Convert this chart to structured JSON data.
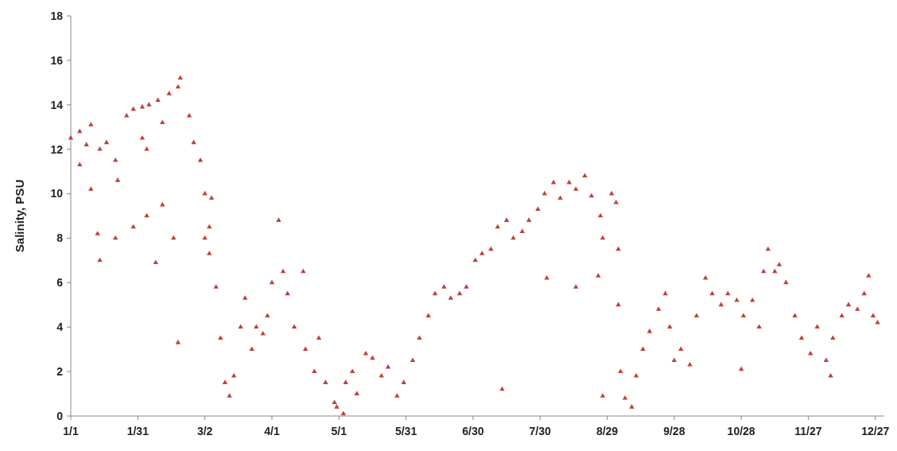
{
  "chart_data": {
    "type": "scatter",
    "ylabel": "Salinity, PSU",
    "marker": "triangle",
    "grid": false,
    "xlim": [
      "--01-01",
      "--12-31"
    ],
    "ylim": [
      0,
      18
    ],
    "xticks": [
      {
        "value": "--01-01",
        "label": "1/1"
      },
      {
        "value": "--01-31",
        "label": "1/31"
      },
      {
        "value": "--03-02",
        "label": "3/2"
      },
      {
        "value": "--04-01",
        "label": "4/1"
      },
      {
        "value": "--05-01",
        "label": "5/1"
      },
      {
        "value": "--05-31",
        "label": "5/31"
      },
      {
        "value": "--06-30",
        "label": "6/30"
      },
      {
        "value": "--07-30",
        "label": "7/30"
      },
      {
        "value": "--08-29",
        "label": "8/29"
      },
      {
        "value": "--09-28",
        "label": "9/28"
      },
      {
        "value": "--10-28",
        "label": "10/28"
      },
      {
        "value": "--11-27",
        "label": "11/27"
      },
      {
        "value": "--12-27",
        "label": "12/27"
      }
    ],
    "yticks": [
      0,
      2,
      4,
      6,
      8,
      10,
      12,
      14,
      16,
      18
    ],
    "series": [
      {
        "color": "#c0403c",
        "x": [
          "--01-01",
          "--01-05",
          "--01-08",
          "--01-10",
          "--01-14",
          "--01-17",
          "--01-21",
          "--01-22",
          "--01-26",
          "--01-29",
          "--02-02",
          "--02-02",
          "--02-04",
          "--02-05",
          "--02-09",
          "--02-11",
          "--02-14",
          "--02-18",
          "--02-19",
          "--02-23",
          "--02-25",
          "--02-28",
          "--03-02",
          "--03-02",
          "--03-04",
          "--03-04",
          "--03-05",
          "--03-07",
          "--03-09",
          "--03-11",
          "--03-13",
          "--03-15",
          "--03-18",
          "--03-20",
          "--03-23",
          "--03-25",
          "--03-28",
          "--03-30",
          "--04-01",
          "--04-04",
          "--04-06",
          "--04-08",
          "--04-11",
          "--04-15",
          "--04-16",
          "--04-20",
          "--04-22",
          "--04-25",
          "--04-29",
          "--04-30",
          "--05-04",
          "--05-07",
          "--05-09",
          "--05-13",
          "--05-16",
          "--05-20",
          "--05-23",
          "--05-27",
          "--05-30",
          "--06-03",
          "--06-06",
          "--06-10",
          "--06-13",
          "--06-17",
          "--06-20",
          "--06-24",
          "--06-27",
          "--07-01",
          "--07-04",
          "--07-08",
          "--07-11",
          "--07-15",
          "--07-18",
          "--07-22",
          "--07-25",
          "--07-29",
          "--08-01",
          "--08-05",
          "--08-08",
          "--08-12",
          "--08-15",
          "--08-19",
          "--08-22",
          "--08-26",
          "--08-27",
          "--08-31",
          "--09-02",
          "--09-03",
          "--09-03",
          "--09-04",
          "--09-06",
          "--09-09",
          "--09-11",
          "--09-14",
          "--09-17",
          "--09-21",
          "--09-24",
          "--09-26",
          "--09-28",
          "--10-01",
          "--10-05",
          "--10-08",
          "--10-12",
          "--10-15",
          "--10-19",
          "--10-22",
          "--10-26",
          "--10-29",
          "--11-02",
          "--11-05",
          "--11-07",
          "--11-09",
          "--11-12",
          "--11-14",
          "--11-17",
          "--11-21",
          "--11-24",
          "--11-28",
          "--12-01",
          "--12-05",
          "--12-07",
          "--12-08",
          "--12-12",
          "--12-15",
          "--12-19",
          "--12-22",
          "--12-24",
          "--12-26",
          "--12-28",
          "--01-05",
          "--01-10",
          "--01-13",
          "--01-14",
          "--01-21",
          "--01-29",
          "--02-04",
          "--02-08",
          "--02-11",
          "--02-16",
          "--02-18",
          "--05-03",
          "--07-13",
          "--08-02",
          "--08-15",
          "--08-25",
          "--08-27",
          "--10-28"
        ],
        "values": [
          12.5,
          12.8,
          12.2,
          13.1,
          12.0,
          12.3,
          11.5,
          10.6,
          13.5,
          13.8,
          12.5,
          13.9,
          12.0,
          14.0,
          14.2,
          13.2,
          14.5,
          14.8,
          15.2,
          13.5,
          12.3,
          11.5,
          10.0,
          8.0,
          8.5,
          7.3,
          9.8,
          5.8,
          3.5,
          1.5,
          0.9,
          1.8,
          4.0,
          5.3,
          3.0,
          4.0,
          3.7,
          4.5,
          6.0,
          8.8,
          6.5,
          5.5,
          4.0,
          6.5,
          3.0,
          2.0,
          3.5,
          1.5,
          0.6,
          0.4,
          1.5,
          2.0,
          1.0,
          2.8,
          2.6,
          1.8,
          2.2,
          0.9,
          1.5,
          2.5,
          3.5,
          4.5,
          5.5,
          5.8,
          5.3,
          5.5,
          5.8,
          7.0,
          7.3,
          7.5,
          8.5,
          8.8,
          8.0,
          8.3,
          8.8,
          9.3,
          10.0,
          10.5,
          9.8,
          10.5,
          10.2,
          10.8,
          9.9,
          9.0,
          8.0,
          10.0,
          9.6,
          7.5,
          5.0,
          2.0,
          0.8,
          0.4,
          1.8,
          3.0,
          3.8,
          4.8,
          5.5,
          4.0,
          2.5,
          3.0,
          2.3,
          4.5,
          6.2,
          5.5,
          5.0,
          5.5,
          5.2,
          4.5,
          5.2,
          4.0,
          6.5,
          7.5,
          6.5,
          6.8,
          6.0,
          4.5,
          3.5,
          2.8,
          4.0,
          2.5,
          1.8,
          3.5,
          4.5,
          5.0,
          4.8,
          5.5,
          6.3,
          4.5,
          4.2,
          11.3,
          10.2,
          8.2,
          7.0,
          8.0,
          8.5,
          9.0,
          6.9,
          9.5,
          8.0,
          3.3,
          0.1,
          1.2,
          6.2,
          5.8,
          6.3,
          0.9,
          2.1
        ]
      }
    ]
  }
}
